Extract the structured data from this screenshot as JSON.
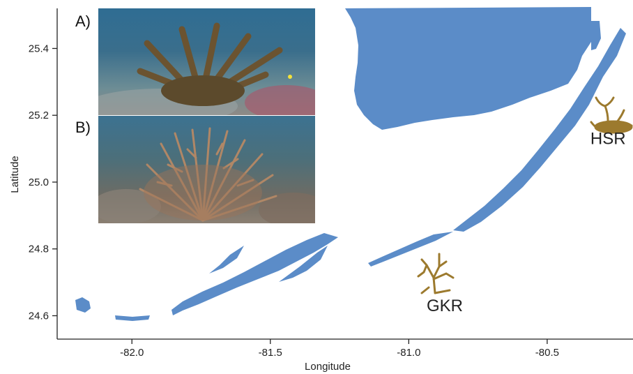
{
  "map": {
    "xlabel": "Longitude",
    "ylabel": "Latitude",
    "xlim": [
      -82.27,
      -80.19
    ],
    "ylim": [
      24.53,
      25.52
    ],
    "x_ticks": [
      {
        "value": -82.0,
        "label": "-82.0"
      },
      {
        "value": -81.5,
        "label": "-81.5"
      },
      {
        "value": -81.0,
        "label": "-81.0"
      },
      {
        "value": -80.5,
        "label": "-80.5"
      }
    ],
    "y_ticks": [
      {
        "value": 24.6,
        "label": "24.6"
      },
      {
        "value": 24.8,
        "label": "24.8"
      },
      {
        "value": 25.0,
        "label": "25.0"
      },
      {
        "value": 25.2,
        "label": "25.2"
      },
      {
        "value": 25.4,
        "label": "25.4"
      }
    ],
    "sites": [
      {
        "label": "HSR",
        "lon": -80.28,
        "lat": 25.13
      },
      {
        "label": "GKR",
        "lon": -80.87,
        "lat": 24.63
      }
    ],
    "land_color": "#5b8cc8",
    "coral_color": "#9c7a2e"
  },
  "inset": {
    "panel_a": {
      "label": "A)"
    },
    "panel_b": {
      "label": "B)"
    }
  }
}
